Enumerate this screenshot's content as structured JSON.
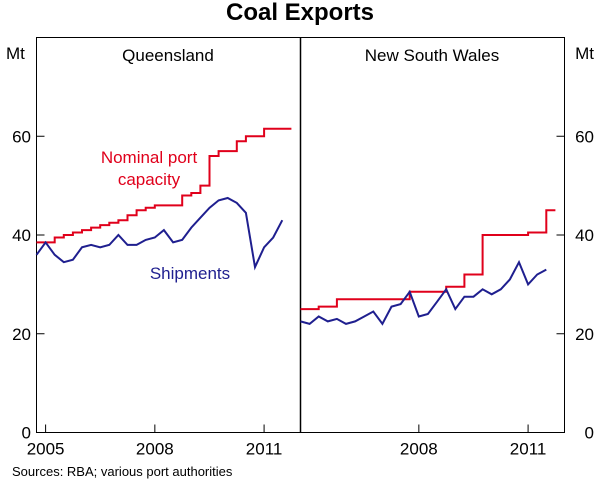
{
  "chart_data": {
    "type": "line",
    "title": "Coal Exports",
    "unit": "Mt",
    "ylim": [
      0,
      80
    ],
    "yticks": [
      0,
      20,
      40,
      60
    ],
    "colors": {
      "capacity": "#e0001b",
      "shipments": "#1f1f8f"
    },
    "source": "Sources: RBA; various port authorities",
    "panels": [
      {
        "name": "Queensland",
        "xlim": [
          2004.75,
          2012.0
        ],
        "xticks": [
          {
            "value": 2005,
            "label": "2005"
          },
          {
            "value": 2008,
            "label": "2008"
          },
          {
            "value": 2011,
            "label": "2011"
          }
        ],
        "annotations": {
          "capacity": [
            "Nominal port",
            "capacity"
          ],
          "shipments": "Shipments"
        },
        "series": [
          {
            "name": "Nominal port capacity",
            "key": "capacity",
            "step": true,
            "x": [
              2004.75,
              2005.0,
              2005.25,
              2005.5,
              2005.75,
              2006.0,
              2006.25,
              2006.5,
              2006.75,
              2007.0,
              2007.25,
              2007.5,
              2007.75,
              2008.0,
              2008.25,
              2008.5,
              2008.75,
              2009.0,
              2009.25,
              2009.5,
              2009.75,
              2010.0,
              2010.25,
              2010.5,
              2010.75,
              2011.0,
              2011.25,
              2011.5
            ],
            "values": [
              38.5,
              38.5,
              39.5,
              40,
              40.5,
              41,
              41.5,
              42,
              42.5,
              43,
              44,
              45,
              45.5,
              46,
              46,
              46,
              48,
              48.5,
              50,
              56,
              57,
              57,
              59,
              60,
              60,
              61.5,
              61.5,
              61.5
            ]
          },
          {
            "name": "Shipments",
            "key": "shipments",
            "x": [
              2004.75,
              2005.0,
              2005.25,
              2005.5,
              2005.75,
              2006.0,
              2006.25,
              2006.5,
              2006.75,
              2007.0,
              2007.25,
              2007.5,
              2007.75,
              2008.0,
              2008.25,
              2008.5,
              2008.75,
              2009.0,
              2009.25,
              2009.5,
              2009.75,
              2010.0,
              2010.25,
              2010.5,
              2010.75,
              2011.0,
              2011.25,
              2011.5
            ],
            "values": [
              36,
              38.5,
              36,
              34.5,
              35,
              37.5,
              38,
              37.5,
              38,
              40,
              38,
              38,
              39,
              39.5,
              41,
              38.5,
              39,
              41.5,
              43.5,
              45.5,
              47,
              47.5,
              46.5,
              44.5,
              33.5,
              37.5,
              39.5,
              43
            ]
          }
        ]
      },
      {
        "name": "New South Wales",
        "xlim": [
          2004.75,
          2012.0
        ],
        "xticks": [
          {
            "value": 2008,
            "label": "2008"
          },
          {
            "value": 2011,
            "label": "2011"
          }
        ],
        "series": [
          {
            "name": "Nominal port capacity",
            "key": "capacity",
            "step": true,
            "x": [
              2004.75,
              2005.0,
              2005.25,
              2005.5,
              2005.75,
              2006.0,
              2006.25,
              2006.5,
              2006.75,
              2007.0,
              2007.25,
              2007.5,
              2007.75,
              2008.0,
              2008.25,
              2008.5,
              2008.75,
              2009.0,
              2009.25,
              2009.5,
              2009.75,
              2010.0,
              2010.25,
              2010.5,
              2010.75,
              2011.0,
              2011.25,
              2011.5
            ],
            "values": [
              25,
              25,
              25.5,
              25.5,
              27,
              27,
              27,
              27,
              27,
              27,
              27,
              27,
              28.5,
              28.5,
              28.5,
              28.5,
              29.5,
              29.5,
              32,
              32,
              40,
              40,
              40,
              40,
              40,
              40.5,
              40.5,
              45
            ]
          },
          {
            "name": "Shipments",
            "key": "shipments",
            "x": [
              2004.75,
              2005.0,
              2005.25,
              2005.5,
              2005.75,
              2006.0,
              2006.25,
              2006.5,
              2006.75,
              2007.0,
              2007.25,
              2007.5,
              2007.75,
              2008.0,
              2008.25,
              2008.5,
              2008.75,
              2009.0,
              2009.25,
              2009.5,
              2009.75,
              2010.0,
              2010.25,
              2010.5,
              2010.75,
              2011.0,
              2011.25,
              2011.5
            ],
            "values": [
              22.5,
              22,
              23.5,
              22.5,
              23,
              22,
              22.5,
              23.5,
              24.5,
              22,
              25.5,
              26,
              28.5,
              23.5,
              24,
              26.5,
              29,
              25,
              27.5,
              27.5,
              29,
              28,
              29,
              31,
              34.5,
              30,
              32,
              33
            ]
          }
        ]
      }
    ]
  }
}
